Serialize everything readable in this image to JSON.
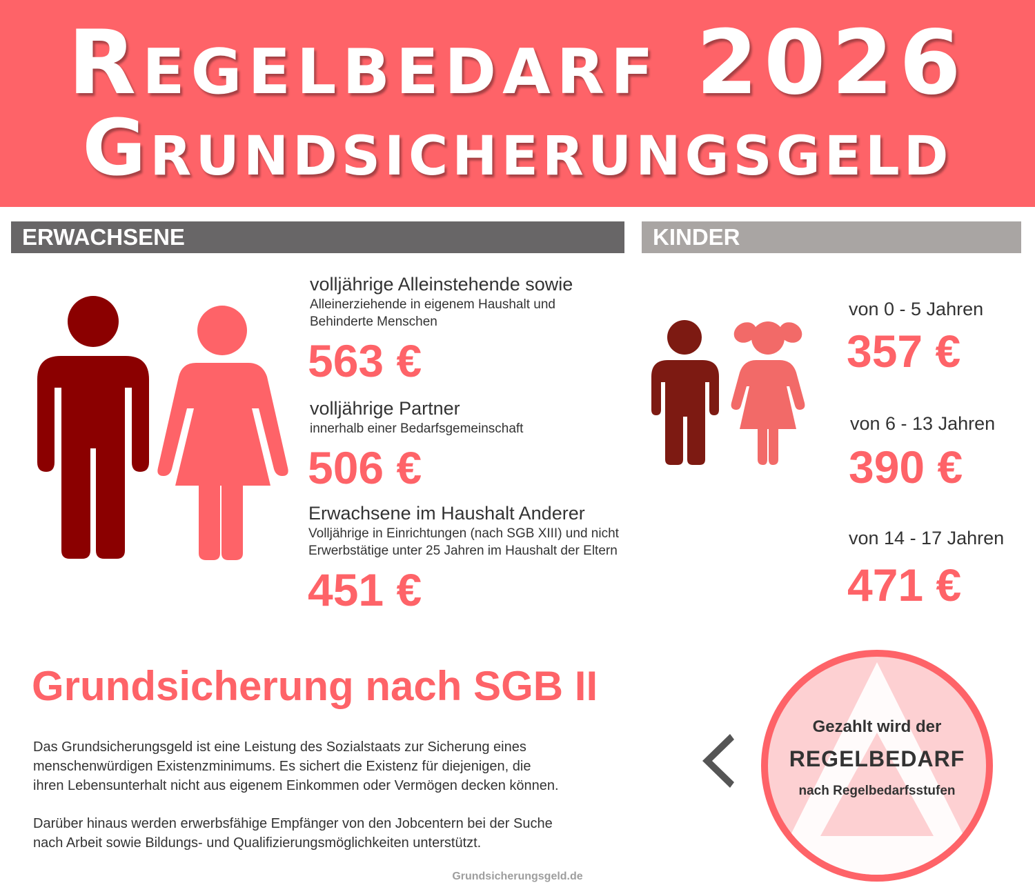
{
  "header": {
    "title_line1": "Regelbedarf 2026",
    "title_line2": "Grundsicherungsgeld"
  },
  "colors": {
    "accent": "#fe6368",
    "man": "#8b0000",
    "boy": "#7d1a12",
    "girl": "#f26a68",
    "adults_bar": "#686667",
    "kids_bar": "#a9a5a3"
  },
  "adults": {
    "section_label": "ERWACHSENE",
    "items": [
      {
        "heading": "volljährige Alleinstehende sowie",
        "sub_lines": [
          "Alleinerziehende in eigenem Haushalt und",
          "Behinderte Menschen"
        ],
        "amount": "563 €"
      },
      {
        "heading": "volljährige Partner",
        "sub_lines": [
          "innerhalb einer Bedarfsgemeinschaft"
        ],
        "amount": "506 €"
      },
      {
        "heading": "Erwachsene im Haushalt Anderer",
        "sub_lines": [
          "Volljährige in Einrichtungen (nach SGB XIII) und nicht",
          "Erwerbstätige unter 25 Jahren im Haushalt der Eltern"
        ],
        "amount": "451 €"
      }
    ]
  },
  "kids": {
    "section_label": "KINDER",
    "items": [
      {
        "age": "von 0 - 5 Jahren",
        "amount": "357 €"
      },
      {
        "age": "von 6 - 13 Jahren",
        "amount": "390 €"
      },
      {
        "age": "von 14 - 17 Jahren",
        "amount": "471 €"
      }
    ]
  },
  "sgb": {
    "title": "Grundsicherung nach SGB II",
    "paragraph1": [
      "Das Grundsicherungsgeld ist eine Leistung des Sozialstaats zur Sicherung eines",
      "menschenwürdigen Existenzminimums. Es sichert die Existenz für diejenigen, die",
      "ihren Lebensunterhalt nicht aus eigenem Einkommen oder Vermögen decken können."
    ],
    "paragraph2": [
      "Darüber hinaus werden erwerbsfähige Empfänger von den Jobcentern bei der Suche",
      "nach Arbeit sowie Bildungs- und Qualifizierungsmöglichkeiten unterstützt."
    ]
  },
  "badge": {
    "line1": "Gezahlt wird der",
    "line2": "REGELBEDARF",
    "line3": "nach Regelbedarfsstufen"
  },
  "footer": {
    "site": "Grundsicherungsgeld.de"
  }
}
